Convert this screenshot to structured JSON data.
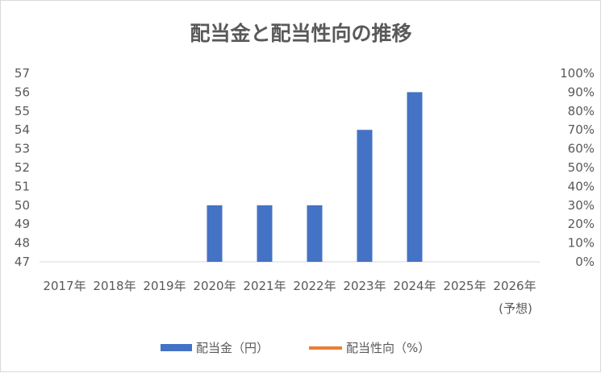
{
  "chart_data": {
    "type": "bar",
    "title": "配当金と配当性向の推移",
    "categories": [
      "2017年",
      "2018年",
      "2019年",
      "2020年",
      "2021年",
      "2022年",
      "2023年",
      "2024年",
      "2025年",
      "2026年"
    ],
    "category_note": "(予想)",
    "series": [
      {
        "name": "配当金（円）",
        "type": "bar",
        "axis": "left",
        "color": "#4472c4",
        "values": [
          null,
          null,
          null,
          50,
          50,
          50,
          54,
          56,
          null,
          null
        ]
      },
      {
        "name": "配当性向（%）",
        "type": "line",
        "axis": "right",
        "color": "#ed7d31",
        "values": [
          null,
          null,
          null,
          null,
          null,
          null,
          null,
          null,
          null,
          null
        ]
      }
    ],
    "y_left": {
      "min": 47,
      "max": 57,
      "ticks": [
        "47",
        "48",
        "49",
        "50",
        "51",
        "52",
        "53",
        "54",
        "55",
        "56",
        "57"
      ]
    },
    "y_right": {
      "min": 0,
      "max": 1,
      "ticks": [
        "0%",
        "10%",
        "20%",
        "30%",
        "40%",
        "50%",
        "60%",
        "70%",
        "80%",
        "90%",
        "100%"
      ]
    },
    "grid": false,
    "legend_position": "bottom"
  }
}
